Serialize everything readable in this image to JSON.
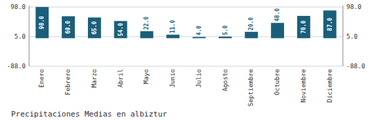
{
  "chart_data": {
    "type": "bar",
    "title": "Precipitaciones Medias en albiztur",
    "categories": [
      "Enero",
      "Febrero",
      "Marzo",
      "Abril",
      "Mayo",
      "Junio",
      "Julio",
      "Agosto",
      "Septiembre",
      "Octubre",
      "Noviembre",
      "Diciembre"
    ],
    "values": [
      98.0,
      69.0,
      65.0,
      54.0,
      22.0,
      11.0,
      4.0,
      5.0,
      20.0,
      48.0,
      70.0,
      87.0
    ],
    "value_labels": [
      "98.0",
      "69.0",
      "65.0",
      "54.0",
      "22.0",
      "11.0",
      "4.0",
      "5.0",
      "20.0",
      "48.0",
      "70.0",
      "87.0"
    ],
    "data_labels": true,
    "color": "#1a5f7a",
    "ylim": [
      -88,
      102.65
    ],
    "yticks": [
      {
        "value": -88,
        "label": "-88.0"
      },
      {
        "value": 5,
        "label": "5.0"
      },
      {
        "value": 98,
        "label": "98.0"
      }
    ],
    "grid": true
  }
}
